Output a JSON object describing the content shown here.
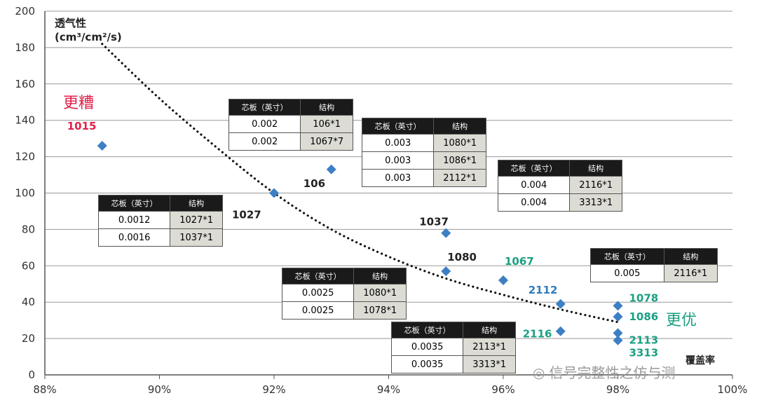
{
  "chart_data": {
    "type": "scatter",
    "ylabel_line1": "透气性",
    "ylabel_line2": "(cm³/cm²/s)",
    "xlabel": "覆盖率",
    "xlim": [
      88,
      100
    ],
    "ylim": [
      0,
      200
    ],
    "x_ticks": [
      "88%",
      "90%",
      "92%",
      "94%",
      "96%",
      "98%",
      "100%"
    ],
    "y_ticks": [
      "0",
      "20",
      "40",
      "60",
      "80",
      "100",
      "120",
      "140",
      "160",
      "180",
      "200"
    ],
    "points": [
      {
        "x": 89.0,
        "y": 126,
        "label": "1015",
        "label_color": "#e0204a"
      },
      {
        "x": 92.0,
        "y": 100,
        "label": "1027",
        "label_color": "#222222"
      },
      {
        "x": 93.0,
        "y": 113,
        "label": "106",
        "label_color": "#222222"
      },
      {
        "x": 95.0,
        "y": 78,
        "label": "1037",
        "label_color": "#222222"
      },
      {
        "x": 95.0,
        "y": 57,
        "label": "1080",
        "label_color": "#222222"
      },
      {
        "x": 96.0,
        "y": 52,
        "label": "1067",
        "label_color": "#1aa083"
      },
      {
        "x": 97.0,
        "y": 39,
        "label": "2112",
        "label_color": "#2f7bbf"
      },
      {
        "x": 97.0,
        "y": 24,
        "label": "2116",
        "label_color": "#1aa083"
      },
      {
        "x": 98.0,
        "y": 38,
        "label": "1078",
        "label_color": "#1aa083"
      },
      {
        "x": 98.0,
        "y": 32,
        "label": "1086",
        "label_color": "#1aa083"
      },
      {
        "x": 98.0,
        "y": 23,
        "label": "2113",
        "label_color": "#1aa083"
      },
      {
        "x": 98.0,
        "y": 19,
        "label": "3313",
        "label_color": "#1aa083"
      }
    ],
    "trend": [
      [
        89.0,
        182
      ],
      [
        90.0,
        152
      ],
      [
        91.0,
        125
      ],
      [
        92.0,
        100
      ],
      [
        93.0,
        80
      ],
      [
        94.0,
        65
      ],
      [
        95.0,
        53
      ],
      [
        96.0,
        44
      ],
      [
        97.0,
        36
      ],
      [
        98.0,
        29
      ]
    ],
    "annotations": {
      "worse": "更糟",
      "better": "更优"
    },
    "marker_color": "#3d7fc4",
    "grid": true
  },
  "tables": [
    {
      "header": [
        "芯板（英寸）",
        "结构"
      ],
      "rows": [
        [
          "0.002",
          "106*1"
        ],
        [
          "0.002",
          "1067*7"
        ]
      ]
    },
    {
      "header": [
        "芯板（英寸）",
        "结构"
      ],
      "rows": [
        [
          "0.003",
          "1080*1"
        ],
        [
          "0.003",
          "1086*1"
        ],
        [
          "0.003",
          "2112*1"
        ]
      ]
    },
    {
      "header": [
        "芯板（英寸）",
        "结构"
      ],
      "rows": [
        [
          "0.004",
          "2116*1"
        ],
        [
          "0.004",
          "3313*1"
        ]
      ]
    },
    {
      "header": [
        "芯板（英寸）",
        "结构"
      ],
      "rows": [
        [
          "0.0012",
          "1027*1"
        ],
        [
          "0.0016",
          "1037*1"
        ]
      ]
    },
    {
      "header": [
        "芯板（英寸）",
        "结构"
      ],
      "rows": [
        [
          "0.005",
          "2116*1"
        ]
      ]
    },
    {
      "header": [
        "芯板（英寸）",
        "结构"
      ],
      "rows": [
        [
          "0.0025",
          "1080*1"
        ],
        [
          "0.0025",
          "1078*1"
        ]
      ]
    },
    {
      "header": [
        "芯板（英寸）",
        "结构"
      ],
      "rows": [
        [
          "0.0035",
          "2113*1"
        ],
        [
          "0.0035",
          "3313*1"
        ]
      ]
    }
  ],
  "watermark": "信号完整性之仿与测"
}
